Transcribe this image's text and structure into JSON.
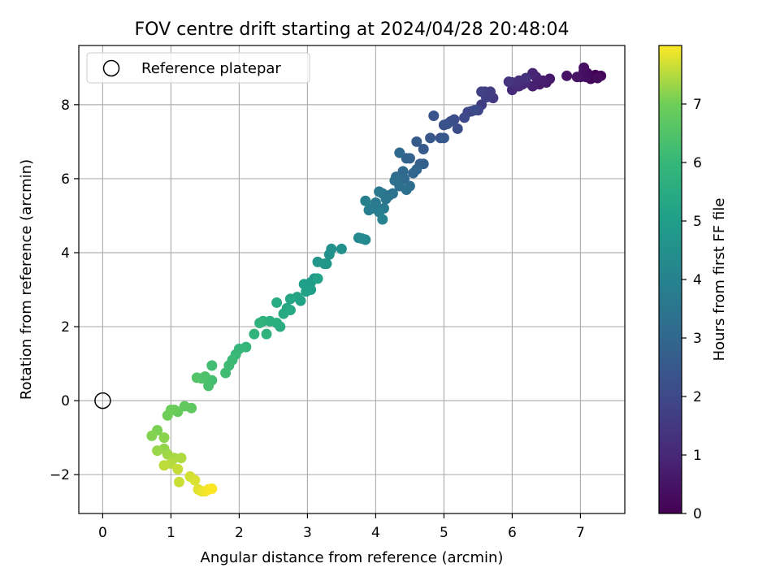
{
  "chart_data": {
    "type": "scatter",
    "title": "FOV centre drift starting at 2024/04/28 20:48:04",
    "xlabel": "Angular distance from reference (arcmin)",
    "ylabel": "Rotation from reference (arcmin)",
    "xlim": [
      -0.35,
      7.65
    ],
    "ylim": [
      -3.05,
      9.6
    ],
    "xticks": [
      0,
      1,
      2,
      3,
      4,
      5,
      6,
      7
    ],
    "yticks": [
      -2,
      0,
      2,
      4,
      6,
      8
    ],
    "grid": true,
    "legend": {
      "placement": "top-left",
      "entries": [
        "Reference platepar"
      ]
    },
    "colorbar": {
      "label": "Hours from first FF file",
      "range": [
        0,
        8
      ],
      "ticks": [
        0,
        1,
        2,
        3,
        4,
        5,
        6,
        7
      ],
      "colormap": "viridis"
    },
    "reference_point": {
      "x": 0,
      "y": 0
    },
    "points": [
      {
        "x": 7.22,
        "y": 8.8,
        "t": 0.0
      },
      {
        "x": 7.15,
        "y": 8.7,
        "t": 0.05
      },
      {
        "x": 7.3,
        "y": 8.78,
        "t": 0.1
      },
      {
        "x": 7.05,
        "y": 8.9,
        "t": 0.15
      },
      {
        "x": 7.1,
        "y": 8.85,
        "t": 0.2
      },
      {
        "x": 7.25,
        "y": 8.72,
        "t": 0.25
      },
      {
        "x": 7.08,
        "y": 8.75,
        "t": 0.3
      },
      {
        "x": 7.0,
        "y": 8.75,
        "t": 0.35
      },
      {
        "x": 7.05,
        "y": 9.0,
        "t": 0.4
      },
      {
        "x": 6.8,
        "y": 8.78,
        "t": 0.45
      },
      {
        "x": 6.95,
        "y": 8.75,
        "t": 0.5
      },
      {
        "x": 6.55,
        "y": 8.7,
        "t": 0.6
      },
      {
        "x": 6.5,
        "y": 8.6,
        "t": 0.65
      },
      {
        "x": 6.4,
        "y": 8.55,
        "t": 0.7
      },
      {
        "x": 6.45,
        "y": 8.65,
        "t": 0.75
      },
      {
        "x": 6.3,
        "y": 8.5,
        "t": 0.8
      },
      {
        "x": 6.35,
        "y": 8.75,
        "t": 0.85
      },
      {
        "x": 6.3,
        "y": 8.85,
        "t": 0.9
      },
      {
        "x": 6.2,
        "y": 8.6,
        "t": 0.95
      },
      {
        "x": 6.15,
        "y": 8.55,
        "t": 1.0
      },
      {
        "x": 6.1,
        "y": 8.5,
        "t": 1.05
      },
      {
        "x": 6.0,
        "y": 8.4,
        "t": 1.1
      },
      {
        "x": 6.1,
        "y": 8.65,
        "t": 1.15
      },
      {
        "x": 6.0,
        "y": 8.6,
        "t": 1.2
      },
      {
        "x": 6.05,
        "y": 8.55,
        "t": 1.25
      },
      {
        "x": 6.2,
        "y": 8.72,
        "t": 1.3
      },
      {
        "x": 5.95,
        "y": 8.62,
        "t": 1.35
      },
      {
        "x": 5.72,
        "y": 8.18,
        "t": 1.5
      },
      {
        "x": 5.6,
        "y": 8.35,
        "t": 1.55
      },
      {
        "x": 5.55,
        "y": 8.0,
        "t": 1.6
      },
      {
        "x": 5.68,
        "y": 8.35,
        "t": 1.65
      },
      {
        "x": 5.62,
        "y": 8.2,
        "t": 1.7
      },
      {
        "x": 5.55,
        "y": 8.35,
        "t": 1.75
      },
      {
        "x": 5.5,
        "y": 7.85,
        "t": 1.85
      },
      {
        "x": 5.4,
        "y": 7.82,
        "t": 1.9
      },
      {
        "x": 5.35,
        "y": 7.8,
        "t": 1.95
      },
      {
        "x": 5.3,
        "y": 7.65,
        "t": 2.0
      },
      {
        "x": 5.45,
        "y": 7.85,
        "t": 2.05
      },
      {
        "x": 5.15,
        "y": 7.6,
        "t": 2.1
      },
      {
        "x": 5.2,
        "y": 7.35,
        "t": 2.15
      },
      {
        "x": 5.1,
        "y": 7.55,
        "t": 2.2
      },
      {
        "x": 5.05,
        "y": 7.48,
        "t": 2.25
      },
      {
        "x": 5.0,
        "y": 7.45,
        "t": 2.3
      },
      {
        "x": 4.95,
        "y": 7.1,
        "t": 2.35
      },
      {
        "x": 4.85,
        "y": 7.7,
        "t": 2.4
      },
      {
        "x": 4.8,
        "y": 7.1,
        "t": 2.45
      },
      {
        "x": 5.0,
        "y": 7.1,
        "t": 2.5
      },
      {
        "x": 4.7,
        "y": 6.8,
        "t": 2.55
      },
      {
        "x": 4.6,
        "y": 7.0,
        "t": 2.6
      },
      {
        "x": 4.7,
        "y": 6.4,
        "t": 2.7
      },
      {
        "x": 4.65,
        "y": 6.4,
        "t": 2.75
      },
      {
        "x": 4.5,
        "y": 6.55,
        "t": 2.8
      },
      {
        "x": 4.45,
        "y": 6.55,
        "t": 2.85
      },
      {
        "x": 4.6,
        "y": 6.25,
        "t": 2.9
      },
      {
        "x": 4.55,
        "y": 6.15,
        "t": 2.95
      },
      {
        "x": 4.4,
        "y": 6.2,
        "t": 3.0
      },
      {
        "x": 4.35,
        "y": 6.7,
        "t": 3.05
      },
      {
        "x": 4.42,
        "y": 6.0,
        "t": 3.1
      },
      {
        "x": 4.3,
        "y": 6.05,
        "t": 3.15
      },
      {
        "x": 4.5,
        "y": 5.8,
        "t": 3.2
      },
      {
        "x": 4.35,
        "y": 5.8,
        "t": 3.25
      },
      {
        "x": 4.28,
        "y": 5.95,
        "t": 3.3
      },
      {
        "x": 4.45,
        "y": 5.7,
        "t": 3.35
      },
      {
        "x": 4.25,
        "y": 5.6,
        "t": 3.4
      },
      {
        "x": 4.2,
        "y": 5.55,
        "t": 3.45
      },
      {
        "x": 4.15,
        "y": 5.45,
        "t": 3.5
      },
      {
        "x": 4.1,
        "y": 5.6,
        "t": 3.55
      },
      {
        "x": 4.05,
        "y": 5.65,
        "t": 3.6
      },
      {
        "x": 4.0,
        "y": 5.35,
        "t": 3.65
      },
      {
        "x": 4.12,
        "y": 5.2,
        "t": 3.7
      },
      {
        "x": 3.95,
        "y": 5.2,
        "t": 3.75
      },
      {
        "x": 4.05,
        "y": 5.1,
        "t": 3.8
      },
      {
        "x": 3.9,
        "y": 5.15,
        "t": 3.85
      },
      {
        "x": 3.85,
        "y": 5.4,
        "t": 3.9
      },
      {
        "x": 4.1,
        "y": 4.9,
        "t": 3.95
      },
      {
        "x": 3.85,
        "y": 4.35,
        "t": 4.2
      },
      {
        "x": 3.75,
        "y": 4.4,
        "t": 4.25
      },
      {
        "x": 3.8,
        "y": 4.38,
        "t": 4.3
      },
      {
        "x": 3.5,
        "y": 4.1,
        "t": 4.45
      },
      {
        "x": 3.35,
        "y": 4.1,
        "t": 4.5
      },
      {
        "x": 3.32,
        "y": 3.95,
        "t": 4.55
      },
      {
        "x": 3.25,
        "y": 3.7,
        "t": 4.65
      },
      {
        "x": 3.15,
        "y": 3.75,
        "t": 4.7
      },
      {
        "x": 3.28,
        "y": 3.7,
        "t": 4.75
      },
      {
        "x": 3.1,
        "y": 3.3,
        "t": 4.85
      },
      {
        "x": 3.05,
        "y": 3.2,
        "t": 4.9
      },
      {
        "x": 3.0,
        "y": 3.1,
        "t": 4.95
      },
      {
        "x": 2.95,
        "y": 3.15,
        "t": 5.0
      },
      {
        "x": 3.05,
        "y": 3.0,
        "t": 5.05
      },
      {
        "x": 2.98,
        "y": 2.95,
        "t": 5.1
      },
      {
        "x": 3.15,
        "y": 3.3,
        "t": 5.15
      },
      {
        "x": 2.9,
        "y": 2.7,
        "t": 5.2
      },
      {
        "x": 2.85,
        "y": 2.8,
        "t": 5.25
      },
      {
        "x": 2.75,
        "y": 2.75,
        "t": 5.3
      },
      {
        "x": 2.7,
        "y": 2.5,
        "t": 5.35
      },
      {
        "x": 2.75,
        "y": 2.45,
        "t": 5.4
      },
      {
        "x": 2.65,
        "y": 2.35,
        "t": 5.45
      },
      {
        "x": 2.55,
        "y": 2.65,
        "t": 5.5
      },
      {
        "x": 2.6,
        "y": 2.0,
        "t": 5.55
      },
      {
        "x": 2.55,
        "y": 2.1,
        "t": 5.6
      },
      {
        "x": 2.45,
        "y": 2.15,
        "t": 5.65
      },
      {
        "x": 2.35,
        "y": 2.15,
        "t": 5.7
      },
      {
        "x": 2.4,
        "y": 1.8,
        "t": 5.75
      },
      {
        "x": 2.3,
        "y": 2.1,
        "t": 5.8
      },
      {
        "x": 2.22,
        "y": 1.8,
        "t": 5.85
      },
      {
        "x": 2.1,
        "y": 1.45,
        "t": 5.95
      },
      {
        "x": 2.0,
        "y": 1.4,
        "t": 6.0
      },
      {
        "x": 1.95,
        "y": 1.25,
        "t": 6.05
      },
      {
        "x": 1.9,
        "y": 1.1,
        "t": 6.1
      },
      {
        "x": 1.85,
        "y": 0.95,
        "t": 6.15
      },
      {
        "x": 1.8,
        "y": 0.75,
        "t": 6.2
      },
      {
        "x": 1.6,
        "y": 0.95,
        "t": 6.25
      },
      {
        "x": 1.6,
        "y": 0.55,
        "t": 6.3
      },
      {
        "x": 1.55,
        "y": 0.4,
        "t": 6.35
      },
      {
        "x": 1.5,
        "y": 0.65,
        "t": 6.4
      },
      {
        "x": 1.45,
        "y": 0.6,
        "t": 6.45
      },
      {
        "x": 1.38,
        "y": 0.62,
        "t": 6.5
      },
      {
        "x": 1.3,
        "y": -0.2,
        "t": 6.75
      },
      {
        "x": 1.2,
        "y": -0.15,
        "t": 6.8
      },
      {
        "x": 1.1,
        "y": -0.3,
        "t": 6.85
      },
      {
        "x": 1.05,
        "y": -0.25,
        "t": 6.9
      },
      {
        "x": 1.0,
        "y": -0.25,
        "t": 6.95
      },
      {
        "x": 0.95,
        "y": -0.4,
        "t": 7.0
      },
      {
        "x": 0.8,
        "y": -0.8,
        "t": 7.1
      },
      {
        "x": 0.72,
        "y": -0.95,
        "t": 7.15
      },
      {
        "x": 0.9,
        "y": -1.0,
        "t": 7.2
      },
      {
        "x": 0.9,
        "y": -1.3,
        "t": 7.25
      },
      {
        "x": 0.8,
        "y": -1.35,
        "t": 7.3
      },
      {
        "x": 0.95,
        "y": -1.45,
        "t": 7.35
      },
      {
        "x": 1.05,
        "y": -1.55,
        "t": 7.4
      },
      {
        "x": 1.15,
        "y": -1.55,
        "t": 7.45
      },
      {
        "x": 1.0,
        "y": -1.7,
        "t": 7.5
      },
      {
        "x": 0.9,
        "y": -1.75,
        "t": 7.55
      },
      {
        "x": 1.1,
        "y": -1.85,
        "t": 7.6
      },
      {
        "x": 1.12,
        "y": -2.2,
        "t": 7.65
      },
      {
        "x": 1.28,
        "y": -2.05,
        "t": 7.7
      },
      {
        "x": 1.35,
        "y": -2.15,
        "t": 7.75
      },
      {
        "x": 1.4,
        "y": -2.4,
        "t": 7.8
      },
      {
        "x": 1.45,
        "y": -2.45,
        "t": 7.85
      },
      {
        "x": 1.5,
        "y": -2.45,
        "t": 7.9
      },
      {
        "x": 1.55,
        "y": -2.4,
        "t": 7.95
      },
      {
        "x": 1.6,
        "y": -2.38,
        "t": 8.0
      }
    ]
  }
}
